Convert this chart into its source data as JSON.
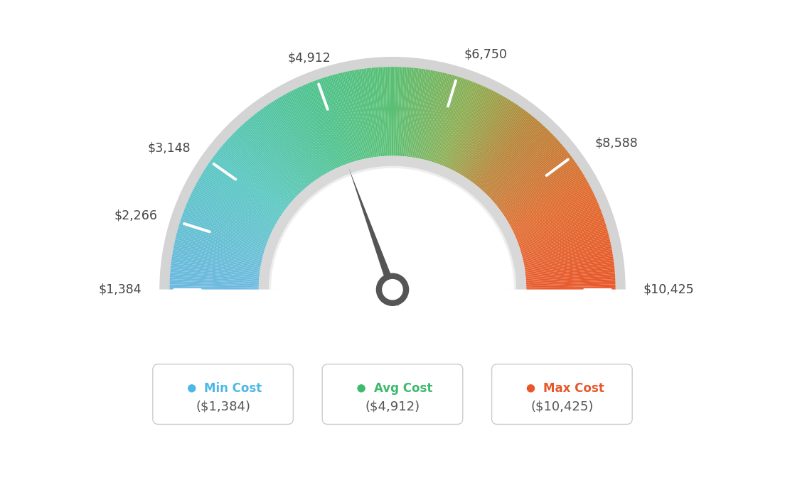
{
  "min_val": 1384,
  "max_val": 10425,
  "avg_val": 4912,
  "label_values": [
    1384,
    2266,
    3148,
    4912,
    6750,
    8588,
    10425
  ],
  "labels": [
    "$1,384",
    "$2,266",
    "$3,148",
    "$4,912",
    "$6,750",
    "$8,588",
    "$10,425"
  ],
  "legend_min_label": "Min Cost",
  "legend_avg_label": "Avg Cost",
  "legend_max_label": "Max Cost",
  "legend_min_value": "($1,384)",
  "legend_avg_value": "($4,912)",
  "legend_max_value": "($10,425)",
  "min_color": "#4db8e8",
  "avg_color": "#3dba6e",
  "max_color": "#e8562a",
  "background_color": "#ffffff",
  "needle_color": "#555555",
  "color_stops": [
    [
      0.0,
      [
        0.42,
        0.72,
        0.88
      ]
    ],
    [
      0.2,
      [
        0.35,
        0.78,
        0.76
      ]
    ],
    [
      0.38,
      [
        0.3,
        0.76,
        0.55
      ]
    ],
    [
      0.5,
      [
        0.35,
        0.75,
        0.45
      ]
    ],
    [
      0.62,
      [
        0.55,
        0.68,
        0.32
      ]
    ],
    [
      0.72,
      [
        0.72,
        0.52,
        0.22
      ]
    ],
    [
      0.85,
      [
        0.88,
        0.42,
        0.18
      ]
    ],
    [
      1.0,
      [
        0.91,
        0.34,
        0.16
      ]
    ]
  ]
}
